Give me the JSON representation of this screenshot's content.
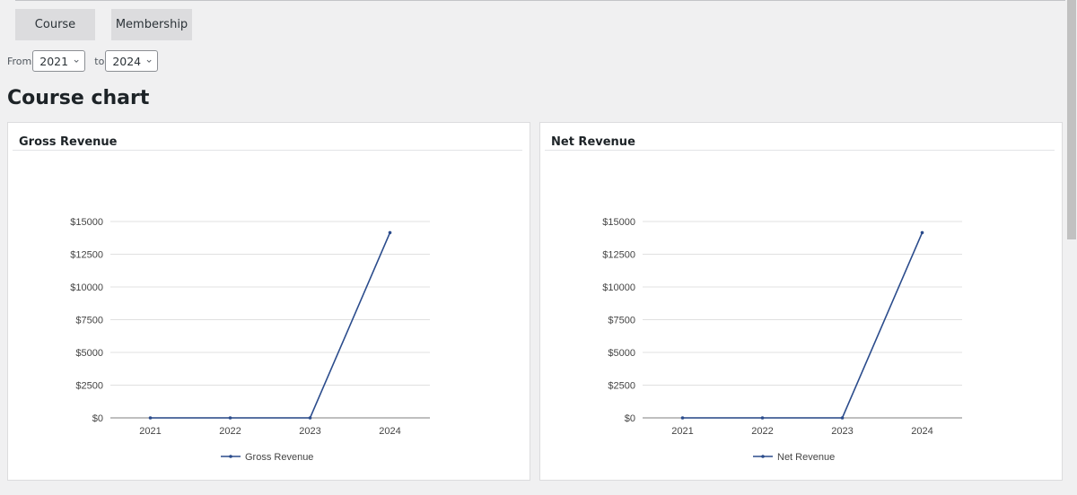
{
  "tabs": [
    {
      "label": "Course",
      "active": true
    },
    {
      "label": "Membership",
      "active": false
    }
  ],
  "filter": {
    "from_label": "From",
    "from_value": "2021",
    "to_label": "to",
    "to_value": "2024"
  },
  "page_title": "Course chart",
  "colors": {
    "series_line": "#2b4c8c",
    "grid": "#e0e0e0",
    "axis": "#999999",
    "tick_text": "#444444"
  },
  "panels": [
    {
      "title": "Gross Revenue",
      "legend": "Gross Revenue"
    },
    {
      "title": "Net Revenue",
      "legend": "Net Revenue"
    }
  ],
  "chart_data": [
    {
      "type": "line",
      "title": "Gross Revenue",
      "categories": [
        "2021",
        "2022",
        "2023",
        "2024"
      ],
      "series": [
        {
          "name": "Gross Revenue",
          "values": [
            0,
            0,
            0,
            14150
          ]
        }
      ],
      "yticks": [
        "$0",
        "$2500",
        "$5000",
        "$7500",
        "$10000",
        "$12500",
        "$15000"
      ],
      "ylim": [
        0,
        15000
      ],
      "xlabel": "",
      "ylabel": "",
      "grid": true,
      "legend_position": "bottom"
    },
    {
      "type": "line",
      "title": "Net Revenue",
      "categories": [
        "2021",
        "2022",
        "2023",
        "2024"
      ],
      "series": [
        {
          "name": "Net Revenue",
          "values": [
            0,
            0,
            0,
            14150
          ]
        }
      ],
      "yticks": [
        "$0",
        "$2500",
        "$5000",
        "$7500",
        "$10000",
        "$12500",
        "$15000"
      ],
      "ylim": [
        0,
        15000
      ],
      "xlabel": "",
      "ylabel": "",
      "grid": true,
      "legend_position": "bottom"
    }
  ]
}
